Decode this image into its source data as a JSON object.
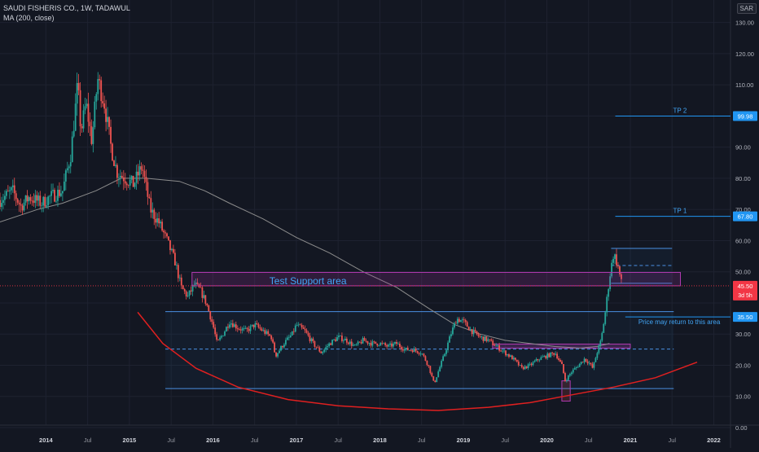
{
  "header": {
    "title": "SAUDI FISHERIS CO., 1W, TADAWUL",
    "indicator": "MA (200, close)"
  },
  "currency": "SAR",
  "colors": {
    "background": "#131722",
    "grid": "#1e2230",
    "up": "#26a69a",
    "down": "#ef5350",
    "ma": "#8c8c8c",
    "blue_line": "#2962ff",
    "level_line": "#4a90e2",
    "magenta": "#b03ab0",
    "curve": "#e02020",
    "price_tag": "#f23645",
    "level_tag": "#2196f3"
  },
  "chart_data": {
    "type": "candlestick",
    "xlabel": "",
    "ylabel": "",
    "ylim": [
      0,
      135
    ],
    "yticks": [
      0,
      10,
      20,
      30,
      40,
      50,
      60,
      70,
      80,
      90,
      100,
      110,
      120,
      130
    ],
    "ytick_labels": [
      "0.00",
      "10.00",
      "20.00",
      "30.00",
      "40.00",
      "50.00",
      "60.00",
      "70.00",
      "80.00",
      "90.00",
      "100.00",
      "110.00",
      "120.00",
      "130.00"
    ],
    "xticks": [
      {
        "t": 2014.0,
        "label": "2014"
      },
      {
        "t": 2014.5,
        "label": "Jul"
      },
      {
        "t": 2015.0,
        "label": "2015"
      },
      {
        "t": 2015.5,
        "label": "Jul"
      },
      {
        "t": 2016.0,
        "label": "2016"
      },
      {
        "t": 2016.5,
        "label": "Jul"
      },
      {
        "t": 2017.0,
        "label": "2017"
      },
      {
        "t": 2017.5,
        "label": "Jul"
      },
      {
        "t": 2018.0,
        "label": "2018"
      },
      {
        "t": 2018.5,
        "label": "Jul"
      },
      {
        "t": 2019.0,
        "label": "2019"
      },
      {
        "t": 2019.5,
        "label": "Jul"
      },
      {
        "t": 2020.0,
        "label": "2020"
      },
      {
        "t": 2020.5,
        "label": "Jul"
      },
      {
        "t": 2021.0,
        "label": "2021"
      },
      {
        "t": 2021.5,
        "label": "Jul"
      },
      {
        "t": 2022.0,
        "label": "2022"
      }
    ],
    "grid": true,
    "price_path": [
      [
        2013.45,
        73
      ],
      [
        2013.6,
        76
      ],
      [
        2013.7,
        71
      ],
      [
        2013.8,
        74
      ],
      [
        2013.95,
        72
      ],
      [
        2014.05,
        74
      ],
      [
        2014.2,
        76
      ],
      [
        2014.3,
        88
      ],
      [
        2014.38,
        110
      ],
      [
        2014.42,
        95
      ],
      [
        2014.48,
        104
      ],
      [
        2014.55,
        92
      ],
      [
        2014.62,
        112
      ],
      [
        2014.7,
        104
      ],
      [
        2014.78,
        90
      ],
      [
        2014.85,
        82
      ],
      [
        2014.95,
        80
      ],
      [
        2015.05,
        78
      ],
      [
        2015.15,
        84
      ],
      [
        2015.25,
        70
      ],
      [
        2015.35,
        66
      ],
      [
        2015.45,
        60
      ],
      [
        2015.55,
        53
      ],
      [
        2015.62,
        45
      ],
      [
        2015.7,
        42
      ],
      [
        2015.78,
        46
      ],
      [
        2015.85,
        44
      ],
      [
        2015.92,
        40
      ],
      [
        2016.0,
        33
      ],
      [
        2016.05,
        27
      ],
      [
        2016.12,
        30
      ],
      [
        2016.2,
        34
      ],
      [
        2016.3,
        32
      ],
      [
        2016.4,
        31
      ],
      [
        2016.5,
        33
      ],
      [
        2016.6,
        31
      ],
      [
        2016.7,
        29
      ],
      [
        2016.75,
        23
      ],
      [
        2016.85,
        27
      ],
      [
        2016.95,
        30
      ],
      [
        2017.0,
        33
      ],
      [
        2017.1,
        31
      ],
      [
        2017.2,
        27
      ],
      [
        2017.3,
        24
      ],
      [
        2017.4,
        27
      ],
      [
        2017.5,
        29
      ],
      [
        2017.6,
        28
      ],
      [
        2017.7,
        26
      ],
      [
        2017.8,
        28
      ],
      [
        2017.9,
        27
      ],
      [
        2018.0,
        27
      ],
      [
        2018.1,
        26
      ],
      [
        2018.2,
        27
      ],
      [
        2018.3,
        25
      ],
      [
        2018.4,
        25
      ],
      [
        2018.5,
        24
      ],
      [
        2018.58,
        20
      ],
      [
        2018.65,
        14
      ],
      [
        2018.7,
        18
      ],
      [
        2018.78,
        24
      ],
      [
        2018.85,
        30
      ],
      [
        2018.92,
        35
      ],
      [
        2019.0,
        34
      ],
      [
        2019.1,
        31
      ],
      [
        2019.2,
        29
      ],
      [
        2019.3,
        28
      ],
      [
        2019.4,
        26
      ],
      [
        2019.5,
        24
      ],
      [
        2019.6,
        22
      ],
      [
        2019.7,
        19
      ],
      [
        2019.8,
        20
      ],
      [
        2019.9,
        22
      ],
      [
        2020.0,
        23
      ],
      [
        2020.1,
        24
      ],
      [
        2020.18,
        20
      ],
      [
        2020.22,
        15
      ],
      [
        2020.3,
        18
      ],
      [
        2020.38,
        20
      ],
      [
        2020.45,
        22
      ],
      [
        2020.5,
        21
      ],
      [
        2020.55,
        19
      ],
      [
        2020.6,
        24
      ],
      [
        2020.65,
        28
      ],
      [
        2020.7,
        37
      ],
      [
        2020.75,
        48
      ],
      [
        2020.8,
        56
      ],
      [
        2020.85,
        52
      ],
      [
        2020.9,
        45.5
      ]
    ],
    "ma_path": [
      [
        2013.45,
        66
      ],
      [
        2013.9,
        70
      ],
      [
        2014.2,
        72
      ],
      [
        2014.6,
        76
      ],
      [
        2014.9,
        80
      ],
      [
        2015.2,
        80
      ],
      [
        2015.6,
        79
      ],
      [
        2015.9,
        76
      ],
      [
        2016.2,
        72
      ],
      [
        2016.6,
        67
      ],
      [
        2017.0,
        61
      ],
      [
        2017.4,
        56
      ],
      [
        2017.8,
        50
      ],
      [
        2018.2,
        45
      ],
      [
        2018.6,
        38
      ],
      [
        2018.9,
        33
      ],
      [
        2019.2,
        30
      ],
      [
        2019.5,
        28
      ],
      [
        2019.8,
        27
      ],
      [
        2020.1,
        26
      ],
      [
        2020.4,
        25.5
      ],
      [
        2020.6,
        26
      ],
      [
        2020.75,
        27
      ]
    ],
    "support_curve": [
      [
        2015.1,
        37
      ],
      [
        2015.4,
        27
      ],
      [
        2015.8,
        19
      ],
      [
        2016.3,
        13
      ],
      [
        2016.9,
        9
      ],
      [
        2017.5,
        7
      ],
      [
        2018.1,
        6
      ],
      [
        2018.7,
        5.5
      ],
      [
        2019.3,
        6.5
      ],
      [
        2019.8,
        8
      ],
      [
        2020.3,
        10.5
      ],
      [
        2020.8,
        13
      ],
      [
        2021.3,
        16
      ],
      [
        2021.8,
        21
      ]
    ],
    "levels": [
      {
        "name": "tp2",
        "label": "TP 2",
        "value": 99.98,
        "tag": "99.98",
        "x_start": 2020.82,
        "x_end": 2022.2
      },
      {
        "name": "tp1",
        "label": "TP 1",
        "value": 67.8,
        "tag": "67.80",
        "x_start": 2020.82,
        "x_end": 2022.2
      },
      {
        "name": "return-area",
        "label": "Price may return to this area",
        "value": 35.5,
        "tag": "35.50",
        "x_start": 2020.94,
        "x_end": 2022.2
      }
    ],
    "current_price": {
      "value": 45.5,
      "tag": "45.50",
      "countdown": "3d 5h"
    },
    "annotations": {
      "test_support": {
        "label": "Test Support area",
        "x0": 2015.75,
        "x1": 2021.6,
        "y0": 45.5,
        "y1": 49.8
      },
      "range_box": {
        "x0": 2015.43,
        "x1": 2021.52,
        "y0": 12.5,
        "y1": 37.2,
        "mid": 25.2
      },
      "target_box": {
        "x0": 2020.77,
        "x1": 2021.5,
        "y0": 46.3,
        "y1": 57.5,
        "mid": 52
      },
      "small_box": {
        "x0": 2020.18,
        "x1": 2020.28,
        "y0": 8.5,
        "y1": 15
      },
      "pink_zone": {
        "x0": 2019.35,
        "x1": 2021.0,
        "y0": 25.5,
        "y1": 26.8
      }
    }
  }
}
